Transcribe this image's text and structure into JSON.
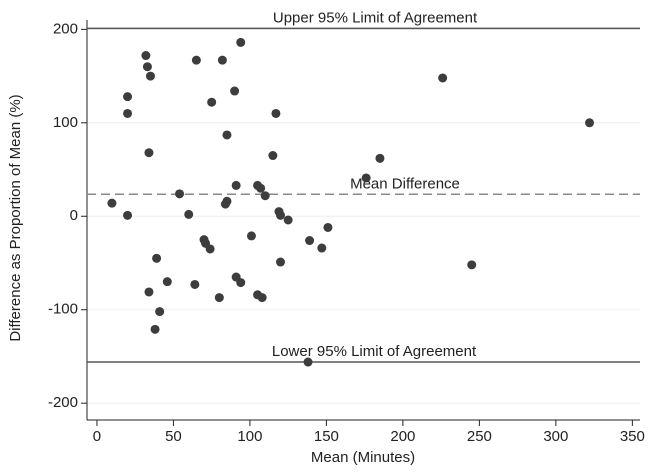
{
  "chart_data": {
    "type": "scatter",
    "x_label": "Mean (Minutes)",
    "y_label": "Difference as Proportion of Mean (%)",
    "series": [
      {
        "color": "#3d3d3d",
        "x": [
          9.8,
          20,
          20,
          20,
          32,
          33,
          35,
          34,
          39,
          41,
          34,
          38,
          46,
          54,
          60,
          65,
          64,
          70,
          71,
          74,
          75,
          80,
          82,
          85,
          85,
          84,
          90,
          91,
          91,
          94,
          94,
          101,
          105,
          105,
          108,
          107,
          110,
          115,
          117,
          119,
          120,
          120,
          125,
          139,
          147,
          151,
          138,
          176,
          185,
          226,
          245,
          322
        ],
        "values": [
          14,
          128,
          110,
          1,
          172,
          160,
          150,
          68,
          -45,
          -102,
          -81,
          -121,
          -70,
          24,
          2,
          167,
          -73,
          -25,
          -29,
          -35,
          122,
          -87,
          167,
          16,
          87,
          13,
          134,
          33,
          -65,
          186,
          -71,
          -21,
          33,
          -84,
          -87,
          30,
          22,
          65,
          110,
          5,
          1,
          -49,
          -4,
          -26,
          -34,
          -12,
          -156,
          41,
          62,
          148,
          -52,
          100
        ]
      }
    ],
    "ref_lines": [
      {
        "label": "Upper 95% Limit of Agreement",
        "value": 201,
        "style": "solid"
      },
      {
        "label": "Mean Difference",
        "value": 23.5,
        "style": "dashed"
      },
      {
        "label": "Lower 95% Limit of Agreement",
        "value": -156,
        "style": "solid"
      }
    ],
    "xlim": [
      -6.5,
      355
    ],
    "ylim": [
      -218,
      210
    ],
    "xticks": [
      0,
      50,
      100,
      150,
      200,
      250,
      300,
      350
    ],
    "yticks": [
      -200,
      -100,
      0,
      100,
      200
    ],
    "grid": true
  }
}
